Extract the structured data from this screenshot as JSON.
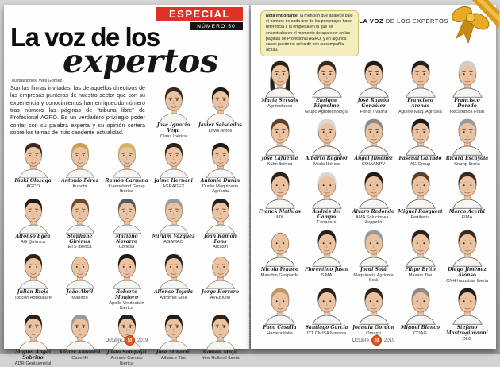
{
  "magazine": {
    "left_page": {
      "badge": {
        "line1": "ESPECIAL",
        "line2": "NÚMERO 50"
      },
      "title": {
        "line1": "La voz de los",
        "line2": "expertos"
      },
      "byline": "Ilustraciones: Willi Gómez",
      "intro": "Son las firmas invitadas, las de aquellos directivos de las empresas punteras de nuestro sector que con su experiencia y conocimientos han enriquecido número tras número las páginas de “tribuna libre” de Profesional AGRO. Es un verdadero privilegio poder contar con su palabra experta y su opinión certera sobre los temas de más candente actualidad.",
      "people": [
        {
          "name": "José Ignacio Vega",
          "company": "Claas Ibérica",
          "hair": "#3a2a1e"
        },
        {
          "name": "Javier Seisdedos",
          "company": "Lovol Arbos",
          "hair": "#211a14"
        },
        {
          "name": "Iñaki Olazaga",
          "company": "AGCO",
          "hair": "#3a2a1e"
        },
        {
          "name": "Antonio Pérez",
          "company": "Kubota",
          "hair": "#c8a24a"
        },
        {
          "name": "Ramón Caruana",
          "company": "Kverneland Group Ibérica",
          "hair": "#d2b36b"
        },
        {
          "name": "Jaime Hernani",
          "company": "AGRAGEX",
          "hair": "#2e2218"
        },
        {
          "name": "Antonio Durán",
          "company": "Durán Maquinaria Agrícola",
          "hair": "#211a14"
        },
        {
          "name": "Alfonso Egea",
          "company": "AG Química",
          "hair": "#211a14"
        },
        {
          "name": "Stéphane Girémis",
          "company": "ETS Ibérica",
          "hair": "#6b4a2d"
        },
        {
          "name": "Mariano Navarro",
          "company": "Conesa",
          "hair": "#5a5a5a"
        },
        {
          "name": "Miriam Vázquez",
          "company": "AGAMAC",
          "hair": "#9a9a9a"
        },
        {
          "name": "Joan Ramón Pons",
          "company": "Arcusin",
          "hair": "#26201a"
        },
        {
          "name": "Julián Rioja",
          "company": "Topcon Agriculture",
          "hair": "#2e2218"
        },
        {
          "name": "João Abril",
          "company": "Manitou",
          "hair": "none"
        },
        {
          "name": "Roberto Montoro",
          "company": "Apollo Vredestein Ibérica",
          "hair": "#211a14"
        },
        {
          "name": "Alfonso Tejada",
          "company": "Agromet Ejea",
          "hair": "#26201a"
        },
        {
          "name": "Jorge Herrero",
          "company": "AVEBIOM",
          "hair": "none"
        },
        {
          "name": "Miguel Ángel Sobrino",
          "company": "ADR Geplasmetal",
          "hair": "#2e2218"
        },
        {
          "name": "Xavier Antonell",
          "company": "Case IH",
          "hair": "#9a9a9a"
        },
        {
          "name": "Justo Sampayo",
          "company": "Antonio Carraro Ibérica",
          "hair": "#26201a"
        },
        {
          "name": "José Miñarro",
          "company": "Alliance Tire",
          "hair": "#211a14"
        },
        {
          "name": "Ramón Moya",
          "company": "New Holland Iberia",
          "hair": "#2e2218"
        }
      ],
      "footer": {
        "month": "Octubre",
        "issue": "50",
        "year": "2019"
      }
    },
    "right_page": {
      "note": {
        "lead": "Nota importante:",
        "text": " la mención que aparece bajo el nombre de cada uno de los personajes hace referencia a la empresa en la que se encontraba en el momento de aparecer en las páginas de Profesional AGRO, y en algunos casos puede no coincidir con su compañía actual."
      },
      "header": {
        "bold": "LA VOZ",
        "rest": " DE LOS EXPERTOS"
      },
      "people": [
        {
          "name": "María Servais",
          "company": "Agritechnica",
          "hair": "#2e2218",
          "style": "long"
        },
        {
          "name": "Enrique Riquelme",
          "company": "Grupo Agrotecnología",
          "hair": "#3a2a1e"
        },
        {
          "name": "José Ramón González",
          "company": "Fendt / Valtra",
          "hair": "#211a14"
        },
        {
          "name": "Francisco Arenas",
          "company": "Aguirre Maq. Agrícola",
          "hair": "#26201a"
        },
        {
          "name": "Francisco Dorado",
          "company": "Recambios Frain",
          "hair": "#cfcfcf"
        },
        {
          "name": "José Lafuente",
          "company": "Kuhn Ibérica",
          "hair": "#5b4226"
        },
        {
          "name": "Alberto Regidor",
          "company": "Merlo Ibérica",
          "hair": "#d9d9d9"
        },
        {
          "name": "Ángel Jiménez",
          "company": "COIAANPV",
          "hair": "#8a8a8a"
        },
        {
          "name": "Pascual Galindo",
          "company": "AG Group",
          "hair": "#211a14"
        },
        {
          "name": "Ricard Escayola",
          "company": "Kramp Iberia",
          "hair": "#9a9a9a"
        },
        {
          "name": "Franck Mathias",
          "company": "MX",
          "hair": "#2e2218"
        },
        {
          "name": "Andrés del Campo",
          "company": "Fenacore",
          "hair": "#d9d9d9"
        },
        {
          "name": "Álvaro Redondo",
          "company": "AMA Soluciones - Zeppelin",
          "hair": "#211a14"
        },
        {
          "name": "Miguel Rosquert",
          "company": "Fertiberia",
          "hair": "#5b4226"
        },
        {
          "name": "Marco Acerbi",
          "company": "FIMA",
          "hair": "#3a2a1e"
        },
        {
          "name": "Nicola Franco",
          "company": "Maschio Gaspardo",
          "hair": "none"
        },
        {
          "name": "Florentino Justo",
          "company": "SIMA",
          "hair": "#26201a"
        },
        {
          "name": "Jordi Solá",
          "company": "Maquinaria Agrícola Solá",
          "hair": "#9a9a9a"
        },
        {
          "name": "Filipe Brito",
          "company": "Maxam Tire",
          "hair": "#2e2218"
        },
        {
          "name": "Diego Jiménez Alonso",
          "company": "CNH Industrial Iberia",
          "hair": "#3a2a1e"
        },
        {
          "name": "Paco Casalla",
          "company": "Hacienditalia",
          "hair": "#b89a6a"
        },
        {
          "name": "Santiago García",
          "company": "ITT CM/SA Navarra",
          "hair": "#26201a"
        },
        {
          "name": "Joaquín Gordón",
          "company": "Omagri",
          "hair": "#2e2218"
        },
        {
          "name": "Miguel Blanco",
          "company": "COAG",
          "hair": "#8a8a8a"
        },
        {
          "name": "Stefano Mastrogiovanni",
          "company": "DLG",
          "hair": "#211a14"
        }
      ],
      "footer": {
        "month": "Octubre",
        "issue": "50",
        "year": "2019"
      }
    },
    "colors": {
      "badge_red": "#e03127",
      "badge_black": "#141414",
      "issue_badge_orange": "#e8541d",
      "note_bg": "#f4eebe",
      "note_border": "#cdc36e",
      "ribbon_gold": "#e8ab25",
      "skin": "#eac3a2"
    }
  }
}
